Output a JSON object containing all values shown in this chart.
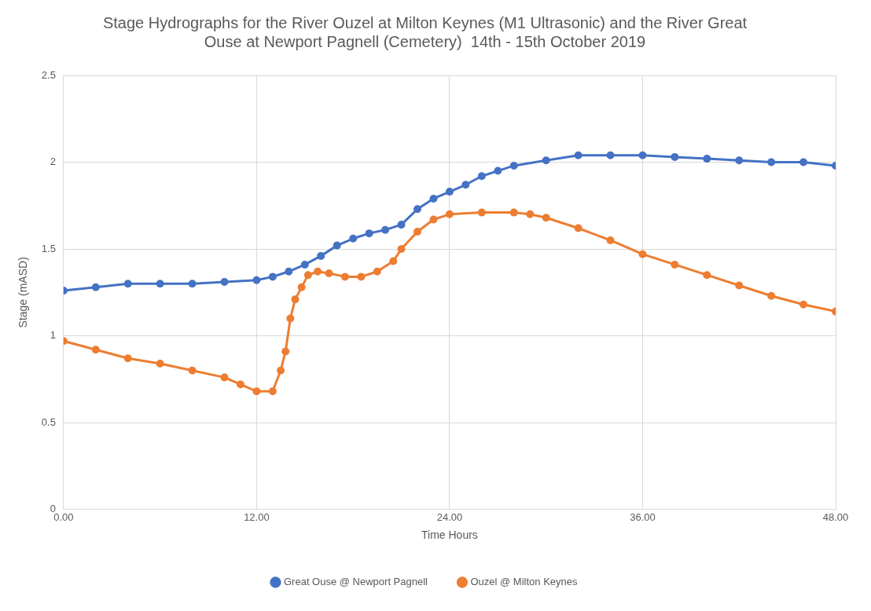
{
  "chart_data": {
    "type": "line",
    "title": "Stage Hydrographs for the River Ouzel at Milton Keynes (M1 Ultrasonic) and the River Great Ouse at Newport Pagnell (Cemetery)  14th - 15th October 2019",
    "xlabel": "Time Hours",
    "ylabel": "Stage (mASD)",
    "xlim": [
      0,
      48
    ],
    "xticks": [
      {
        "value": 0,
        "label": "0.00"
      },
      {
        "value": 12,
        "label": "12.00"
      },
      {
        "value": 24,
        "label": "24.00"
      },
      {
        "value": 36,
        "label": "36.00"
      },
      {
        "value": 48,
        "label": "48.00"
      }
    ],
    "ylim": [
      0,
      2.5
    ],
    "yticks": [
      0,
      0.5,
      1,
      1.5,
      2,
      2.5
    ],
    "grid": true,
    "legend": "bottom",
    "marker": "circle",
    "line_style": "solid",
    "series": [
      {
        "name": "Great Ouse @ Newport Pagnell",
        "color": "#4472c4",
        "x": [
          0,
          2,
          4,
          6,
          8,
          10,
          12,
          13,
          14,
          15,
          16,
          17,
          18,
          19,
          20,
          21,
          22,
          23,
          24,
          25,
          26,
          27,
          28,
          30,
          32,
          34,
          36,
          38,
          40,
          42,
          44,
          46,
          48
        ],
        "values": [
          1.26,
          1.28,
          1.3,
          1.3,
          1.3,
          1.31,
          1.32,
          1.34,
          1.37,
          1.41,
          1.46,
          1.52,
          1.56,
          1.59,
          1.61,
          1.64,
          1.73,
          1.79,
          1.83,
          1.87,
          1.92,
          1.95,
          1.98,
          2.01,
          2.04,
          2.04,
          2.04,
          2.03,
          2.02,
          2.01,
          2,
          2,
          1.98
        ]
      },
      {
        "name": "Ouzel @ Milton Keynes",
        "color": "#ed7d31",
        "x": [
          0,
          2,
          4,
          6,
          8,
          10,
          11,
          12,
          13,
          13.5,
          13.8,
          14.1,
          14.4,
          14.8,
          15.2,
          15.8,
          16.5,
          17.5,
          18.5,
          19.5,
          20.5,
          21,
          22,
          23,
          24,
          26,
          28,
          29,
          30,
          32,
          34,
          36,
          38,
          40,
          42,
          44,
          46,
          48
        ],
        "values": [
          0.97,
          0.92,
          0.87,
          0.84,
          0.8,
          0.76,
          0.72,
          0.68,
          0.68,
          0.8,
          0.91,
          1.1,
          1.21,
          1.28,
          1.35,
          1.37,
          1.36,
          1.34,
          1.34,
          1.37,
          1.43,
          1.5,
          1.6,
          1.67,
          1.7,
          1.71,
          1.71,
          1.7,
          1.68,
          1.62,
          1.55,
          1.47,
          1.41,
          1.35,
          1.29,
          1.23,
          1.18,
          1.14
        ]
      }
    ]
  }
}
